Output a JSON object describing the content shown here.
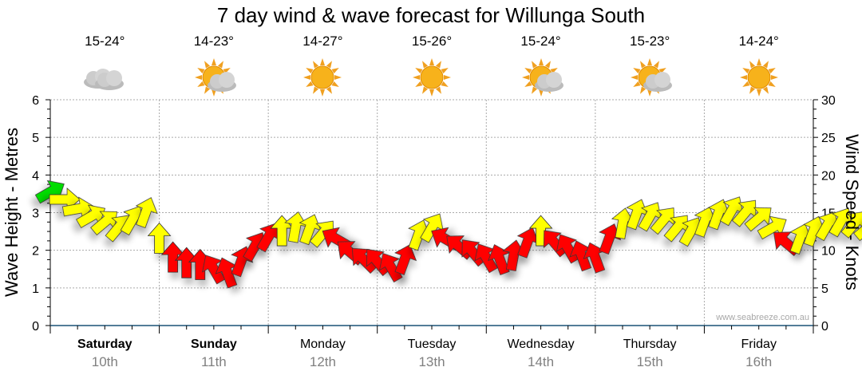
{
  "chart_data": {
    "type": "scatter",
    "title": "7 day wind & wave forecast for Willunga South",
    "ylabel": "Wave Height - Metres",
    "y2label": "Wind Speed - Knots",
    "ylim": [
      0,
      6
    ],
    "y2lim": [
      0,
      30
    ],
    "yticks": [
      "0",
      "1",
      "2",
      "3",
      "4",
      "5",
      "6"
    ],
    "y2ticks": [
      "0",
      "5",
      "10",
      "15",
      "20",
      "25",
      "30"
    ],
    "grid": true,
    "watermark": "www.seabreeze.com.au",
    "days": [
      {
        "name": "Saturday",
        "date": "10th",
        "temp": "15-24°",
        "weather": "cloudy",
        "bold": true
      },
      {
        "name": "Sunday",
        "date": "11th",
        "temp": "14-23°",
        "weather": "partly-cloudy",
        "bold": true
      },
      {
        "name": "Monday",
        "date": "12th",
        "temp": "14-27°",
        "weather": "sunny",
        "bold": false
      },
      {
        "name": "Tuesday",
        "date": "13th",
        "temp": "15-26°",
        "weather": "sunny",
        "bold": false
      },
      {
        "name": "Wednesday",
        "date": "14th",
        "temp": "15-24°",
        "weather": "partly-cloudy",
        "bold": false
      },
      {
        "name": "Thursday",
        "date": "15th",
        "temp": "15-23°",
        "weather": "partly-cloudy",
        "bold": false
      },
      {
        "name": "Friday",
        "date": "16th",
        "temp": "14-24°",
        "weather": "sunny",
        "bold": false
      }
    ],
    "colors": {
      "light": "#00dd00",
      "moderate": "#ffff00",
      "strong": "#ff0000"
    },
    "points_note": "hours from start, wave height (m), wind (knots), arrow heading (deg, 0=up)",
    "points": [
      [
        0,
        3.55,
        9,
        60
      ],
      [
        3,
        3.35,
        14,
        90
      ],
      [
        6,
        3.1,
        15,
        80
      ],
      [
        9,
        2.9,
        15,
        60
      ],
      [
        12,
        2.75,
        15,
        50
      ],
      [
        15,
        2.6,
        14,
        40
      ],
      [
        18,
        2.8,
        14,
        30
      ],
      [
        21,
        3.0,
        14,
        20
      ],
      [
        24,
        2.3,
        15,
        0
      ],
      [
        27,
        1.8,
        20,
        0
      ],
      [
        30,
        1.65,
        21,
        0
      ],
      [
        33,
        1.6,
        21,
        0
      ],
      [
        36,
        1.5,
        21,
        330
      ],
      [
        39,
        1.4,
        21,
        340
      ],
      [
        42,
        1.7,
        20,
        20
      ],
      [
        45,
        2.1,
        20,
        30
      ],
      [
        48,
        2.35,
        20,
        30
      ],
      [
        51,
        2.5,
        15,
        0
      ],
      [
        54,
        2.6,
        15,
        10
      ],
      [
        57,
        2.55,
        15,
        20
      ],
      [
        60,
        2.45,
        14,
        40
      ],
      [
        63,
        2.3,
        20,
        300
      ],
      [
        66,
        1.95,
        21,
        310
      ],
      [
        69,
        1.75,
        21,
        315
      ],
      [
        72,
        1.7,
        21,
        320
      ],
      [
        75,
        1.55,
        20,
        330
      ],
      [
        78,
        1.75,
        20,
        20
      ],
      [
        81,
        2.4,
        15,
        20
      ],
      [
        84,
        2.6,
        14,
        30
      ],
      [
        87,
        2.3,
        20,
        300
      ],
      [
        90,
        2.1,
        20,
        310
      ],
      [
        93,
        1.95,
        20,
        320
      ],
      [
        96,
        1.8,
        21,
        330
      ],
      [
        99,
        1.75,
        20,
        340
      ],
      [
        102,
        1.85,
        20,
        10
      ],
      [
        105,
        2.2,
        20,
        20
      ],
      [
        108,
        2.5,
        15,
        0
      ],
      [
        111,
        2.2,
        20,
        320
      ],
      [
        114,
        2.05,
        20,
        330
      ],
      [
        117,
        1.85,
        20,
        340
      ],
      [
        120,
        1.8,
        21,
        340
      ],
      [
        123,
        2.3,
        20,
        20
      ],
      [
        126,
        2.7,
        15,
        10
      ],
      [
        129,
        2.95,
        15,
        20
      ],
      [
        132,
        2.9,
        15,
        30
      ],
      [
        135,
        2.8,
        15,
        40
      ],
      [
        138,
        2.6,
        15,
        40
      ],
      [
        141,
        2.5,
        15,
        30
      ],
      [
        144,
        2.75,
        15,
        20
      ],
      [
        147,
        2.95,
        15,
        20
      ],
      [
        150,
        3.05,
        15,
        30
      ],
      [
        153,
        3.0,
        15,
        40
      ],
      [
        156,
        2.85,
        15,
        50
      ],
      [
        159,
        2.6,
        14,
        60
      ],
      [
        162,
        2.2,
        20,
        310
      ],
      [
        165,
        2.3,
        14,
        20
      ],
      [
        168,
        2.5,
        14,
        20
      ],
      [
        171,
        2.65,
        14,
        30
      ],
      [
        174,
        2.75,
        15,
        30
      ],
      [
        177,
        2.7,
        15,
        40
      ],
      [
        180,
        2.6,
        15,
        50
      ],
      [
        183,
        2.5,
        15,
        120
      ]
    ]
  }
}
